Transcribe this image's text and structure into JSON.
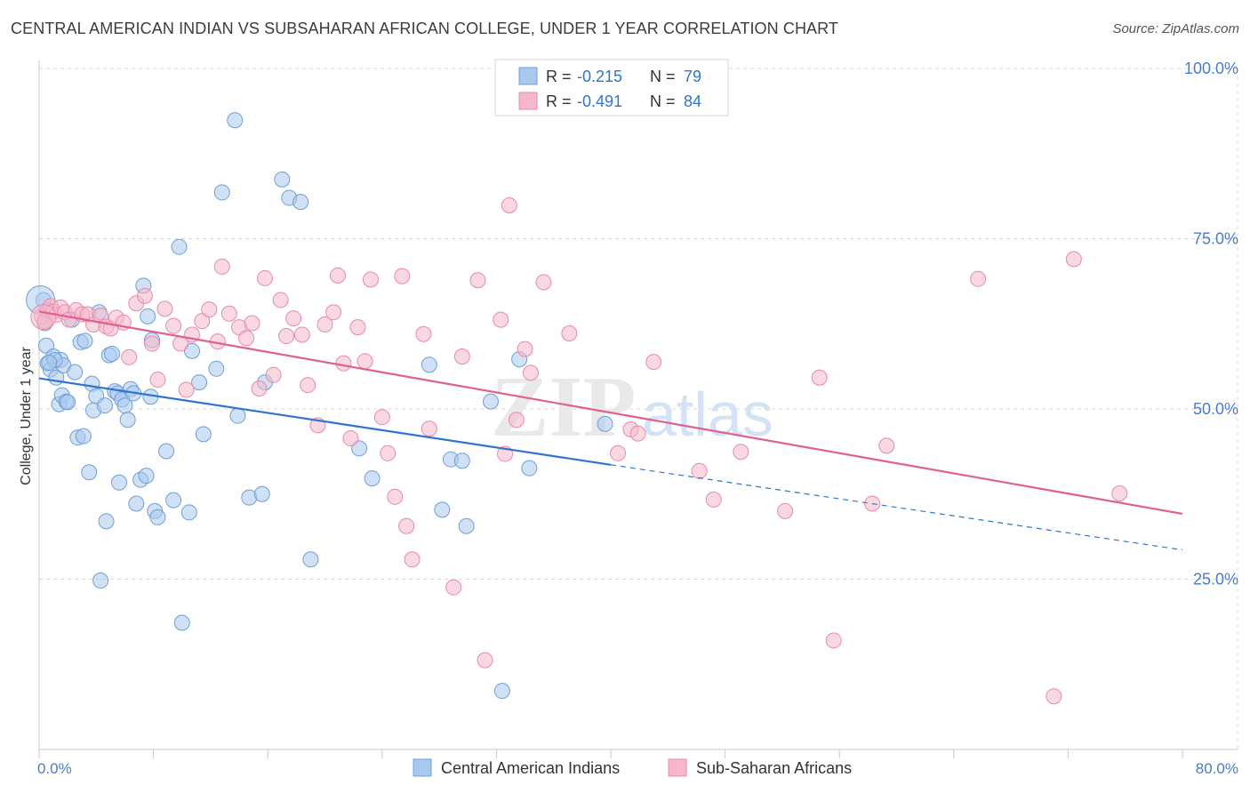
{
  "header": {
    "title": "CENTRAL AMERICAN INDIAN VS SUBSAHARAN AFRICAN COLLEGE, UNDER 1 YEAR CORRELATION CHART",
    "source": "Source: ZipAtlas.com"
  },
  "watermark": {
    "zip": "ZIP",
    "atlas": "atlas"
  },
  "stats": {
    "r_label": "R =",
    "n_label": "N =",
    "series1_r": "-0.215",
    "series1_n": "79",
    "series2_r": "-0.491",
    "series2_n": "84"
  },
  "colors": {
    "blue_fill": "#a9c8ee",
    "blue_stroke": "#6f9fd8",
    "blue_line": "#2f74cf",
    "pink_fill": "#f5b8cb",
    "pink_stroke": "#e88aa8",
    "pink_line": "#e0608e",
    "tick_text": "#4a7cc9",
    "grid": "#d9d9d9"
  },
  "chart_data": {
    "type": "scatter",
    "title": "CENTRAL AMERICAN INDIAN VS SUBSAHARAN AFRICAN COLLEGE, UNDER 1 YEAR CORRELATION CHART",
    "xlabel": "",
    "ylabel": "College, Under 1 year",
    "xlim": [
      0,
      80
    ],
    "ylim": [
      0,
      103
    ],
    "x_tick_labels": [
      "0.0%",
      "80.0%"
    ],
    "y_ticks": [
      25,
      50,
      75,
      100
    ],
    "y_tick_labels": [
      "25.0%",
      "50.0%",
      "75.0%",
      "100.0%"
    ],
    "grid": true,
    "legend_position": "bottom-center",
    "series": [
      {
        "name": "Central American Indians",
        "color": "#a9c8ee",
        "trend": {
          "x": [
            0,
            40
          ],
          "y": [
            54.5,
            41.8
          ],
          "dashed_to_x": 80,
          "dashed_to_y": 29.3
        },
        "points": [
          [
            0.3,
            66.0
          ],
          [
            0.5,
            59.3
          ],
          [
            0.6,
            56.7
          ],
          [
            0.8,
            55.8
          ],
          [
            1.0,
            57.7
          ],
          [
            1.2,
            54.6
          ],
          [
            1.4,
            50.7
          ],
          [
            1.5,
            57.2
          ],
          [
            1.6,
            52.0
          ],
          [
            1.7,
            56.4
          ],
          [
            1.9,
            51.1
          ],
          [
            2.0,
            51.0
          ],
          [
            2.3,
            63.1
          ],
          [
            2.5,
            55.4
          ],
          [
            2.7,
            45.8
          ],
          [
            2.9,
            59.8
          ],
          [
            3.1,
            46.0
          ],
          [
            3.2,
            60.0
          ],
          [
            3.5,
            40.7
          ],
          [
            3.7,
            53.7
          ],
          [
            3.8,
            49.8
          ],
          [
            4.0,
            51.9
          ],
          [
            4.2,
            64.2
          ],
          [
            4.3,
            24.8
          ],
          [
            4.6,
            50.5
          ],
          [
            4.7,
            33.5
          ],
          [
            4.9,
            57.9
          ],
          [
            5.1,
            58.1
          ],
          [
            5.3,
            52.6
          ],
          [
            5.5,
            52.3
          ],
          [
            5.6,
            39.2
          ],
          [
            5.8,
            51.4
          ],
          [
            6.0,
            50.5
          ],
          [
            6.2,
            48.4
          ],
          [
            6.4,
            52.9
          ],
          [
            6.6,
            52.3
          ],
          [
            6.8,
            36.1
          ],
          [
            7.1,
            39.6
          ],
          [
            7.3,
            68.1
          ],
          [
            7.5,
            40.2
          ],
          [
            7.6,
            63.6
          ],
          [
            7.8,
            51.8
          ],
          [
            7.9,
            60.1
          ],
          [
            8.1,
            35.0
          ],
          [
            8.3,
            34.1
          ],
          [
            8.9,
            43.8
          ],
          [
            9.4,
            36.6
          ],
          [
            9.8,
            73.8
          ],
          [
            10.0,
            18.6
          ],
          [
            10.5,
            34.8
          ],
          [
            10.7,
            58.5
          ],
          [
            11.2,
            53.9
          ],
          [
            11.5,
            46.3
          ],
          [
            12.4,
            55.9
          ],
          [
            12.8,
            81.8
          ],
          [
            13.7,
            92.4
          ],
          [
            13.9,
            49.0
          ],
          [
            14.7,
            37.0
          ],
          [
            15.6,
            37.5
          ],
          [
            15.8,
            53.9
          ],
          [
            17.0,
            83.7
          ],
          [
            17.5,
            81.0
          ],
          [
            18.3,
            80.4
          ],
          [
            19.0,
            27.9
          ],
          [
            22.4,
            44.2
          ],
          [
            23.3,
            39.8
          ],
          [
            27.3,
            56.5
          ],
          [
            28.2,
            35.2
          ],
          [
            28.8,
            42.6
          ],
          [
            29.6,
            42.4
          ],
          [
            29.9,
            32.8
          ],
          [
            31.6,
            51.1
          ],
          [
            32.4,
            8.6
          ],
          [
            33.6,
            57.3
          ],
          [
            34.3,
            41.3
          ],
          [
            39.6,
            47.8
          ],
          [
            0.4,
            62.6
          ],
          [
            1.1,
            57.2
          ],
          [
            0.7,
            56.8
          ]
        ]
      },
      {
        "name": "Sub-Saharan Africans",
        "color": "#f5b8cb",
        "trend": {
          "x": [
            0,
            80
          ],
          "y": [
            64.3,
            34.6
          ]
        },
        "points": [
          [
            0.2,
            63.6
          ],
          [
            0.4,
            62.9
          ],
          [
            0.6,
            64.5
          ],
          [
            0.8,
            65.1
          ],
          [
            1.0,
            64.3
          ],
          [
            1.2,
            63.8
          ],
          [
            1.5,
            64.9
          ],
          [
            1.8,
            64.2
          ],
          [
            2.1,
            63.1
          ],
          [
            2.6,
            64.5
          ],
          [
            3.0,
            63.9
          ],
          [
            3.4,
            63.9
          ],
          [
            3.8,
            62.4
          ],
          [
            4.3,
            63.7
          ],
          [
            4.7,
            62.1
          ],
          [
            5.0,
            61.8
          ],
          [
            5.4,
            63.4
          ],
          [
            5.9,
            62.7
          ],
          [
            6.3,
            57.6
          ],
          [
            6.8,
            65.5
          ],
          [
            7.4,
            66.6
          ],
          [
            7.9,
            59.6
          ],
          [
            8.3,
            54.3
          ],
          [
            8.8,
            64.7
          ],
          [
            9.4,
            62.2
          ],
          [
            9.9,
            59.6
          ],
          [
            10.3,
            52.8
          ],
          [
            10.7,
            60.9
          ],
          [
            11.4,
            62.9
          ],
          [
            11.9,
            64.6
          ],
          [
            12.5,
            59.9
          ],
          [
            12.8,
            70.9
          ],
          [
            13.3,
            64.0
          ],
          [
            14.0,
            62.0
          ],
          [
            14.5,
            60.4
          ],
          [
            14.9,
            62.6
          ],
          [
            15.4,
            53.0
          ],
          [
            15.8,
            69.2
          ],
          [
            16.4,
            55.0
          ],
          [
            16.9,
            66.0
          ],
          [
            17.3,
            60.7
          ],
          [
            17.8,
            63.3
          ],
          [
            18.4,
            60.9
          ],
          [
            18.8,
            53.5
          ],
          [
            19.5,
            47.6
          ],
          [
            20.0,
            62.4
          ],
          [
            20.6,
            64.2
          ],
          [
            20.9,
            69.6
          ],
          [
            21.3,
            56.7
          ],
          [
            21.8,
            45.7
          ],
          [
            22.3,
            62.0
          ],
          [
            22.8,
            57.0
          ],
          [
            23.2,
            69.0
          ],
          [
            24.0,
            48.8
          ],
          [
            24.4,
            43.5
          ],
          [
            24.9,
            37.1
          ],
          [
            25.4,
            69.5
          ],
          [
            25.7,
            32.8
          ],
          [
            26.1,
            27.9
          ],
          [
            26.9,
            61.0
          ],
          [
            27.3,
            47.1
          ],
          [
            29.0,
            23.8
          ],
          [
            29.6,
            57.7
          ],
          [
            30.7,
            68.9
          ],
          [
            31.2,
            13.1
          ],
          [
            32.3,
            63.1
          ],
          [
            32.6,
            43.4
          ],
          [
            32.9,
            79.9
          ],
          [
            33.4,
            48.4
          ],
          [
            34.0,
            58.8
          ],
          [
            34.4,
            55.3
          ],
          [
            35.3,
            68.6
          ],
          [
            37.1,
            61.1
          ],
          [
            40.5,
            43.5
          ],
          [
            41.4,
            47.0
          ],
          [
            41.9,
            46.4
          ],
          [
            43.0,
            56.9
          ],
          [
            46.2,
            40.9
          ],
          [
            47.2,
            36.7
          ],
          [
            49.1,
            43.7
          ],
          [
            52.2,
            35.0
          ],
          [
            54.6,
            54.6
          ],
          [
            55.6,
            16.0
          ],
          [
            58.3,
            36.1
          ]
        ],
        "extra_points": [
          [
            59.3,
            44.6
          ],
          [
            65.7,
            69.1
          ],
          [
            71.0,
            7.8
          ],
          [
            72.4,
            72.0
          ],
          [
            75.6,
            37.6
          ]
        ]
      }
    ]
  },
  "axes": {
    "ylabel": "College, Under 1 year",
    "x_left": "0.0%",
    "x_right": "80.0%"
  },
  "legend": {
    "series1": "Central American Indians",
    "series2": "Sub-Saharan Africans"
  }
}
